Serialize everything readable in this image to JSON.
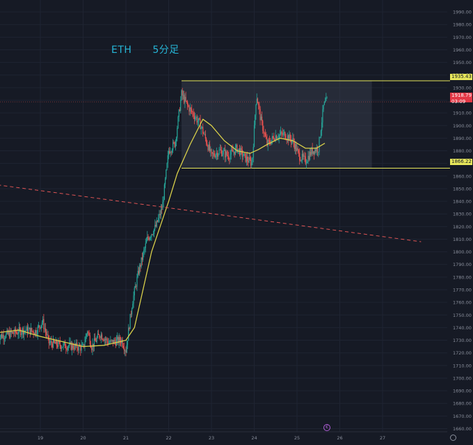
{
  "title": {
    "symbol": "ETH",
    "timeframe": "5分足"
  },
  "colors": {
    "background": "#161a25",
    "grid": "#1f2432",
    "up": "#26a69a",
    "down": "#ef5350",
    "ma": "#d9d04a",
    "range_line": "#e7e75b",
    "range_box": "#3a4150",
    "trendline": "#e05555",
    "axis_text": "#8a8f9c",
    "last_price_bg": "#e33846"
  },
  "chart_data": {
    "type": "candlestick",
    "y_axis": {
      "range": [
        1652,
        1995
      ],
      "ticks": [
        1660,
        1670,
        1680,
        1690,
        1700,
        1710,
        1720,
        1730,
        1740,
        1750,
        1760,
        1770,
        1780,
        1790,
        1800,
        1810,
        1820,
        1830,
        1840,
        1850,
        1860,
        1870,
        1880,
        1890,
        1900,
        1910,
        1920,
        1930,
        1940,
        1950,
        1960,
        1970,
        1980,
        1990
      ]
    },
    "x_axis": {
      "range": [
        0,
        9.9
      ],
      "ticks": [
        {
          "x": 1,
          "label": "19"
        },
        {
          "x": 2,
          "label": "20"
        },
        {
          "x": 3,
          "label": "21"
        },
        {
          "x": 4,
          "label": "22"
        },
        {
          "x": 5,
          "label": "23"
        },
        {
          "x": 6,
          "label": "24"
        },
        {
          "x": 7,
          "label": "25"
        },
        {
          "x": 8,
          "label": "26"
        },
        {
          "x": 9,
          "label": "27"
        }
      ]
    },
    "price_path": [
      [
        0.0,
        1733
      ],
      [
        0.3,
        1735
      ],
      [
        0.6,
        1738
      ],
      [
        0.9,
        1737
      ],
      [
        1.05,
        1745
      ],
      [
        1.2,
        1728
      ],
      [
        1.5,
        1726
      ],
      [
        1.8,
        1725
      ],
      [
        2.0,
        1724
      ],
      [
        2.1,
        1738
      ],
      [
        2.2,
        1725
      ],
      [
        2.4,
        1735
      ],
      [
        2.6,
        1728
      ],
      [
        2.9,
        1730
      ],
      [
        3.0,
        1722
      ],
      [
        3.15,
        1760
      ],
      [
        3.3,
        1785
      ],
      [
        3.5,
        1810
      ],
      [
        3.7,
        1820
      ],
      [
        3.85,
        1835
      ],
      [
        4.0,
        1880
      ],
      [
        4.15,
        1886
      ],
      [
        4.3,
        1925
      ],
      [
        4.45,
        1915
      ],
      [
        4.6,
        1908
      ],
      [
        4.75,
        1900
      ],
      [
        5.0,
        1876
      ],
      [
        5.2,
        1880
      ],
      [
        5.4,
        1876
      ],
      [
        5.6,
        1882
      ],
      [
        5.8,
        1874
      ],
      [
        5.95,
        1870
      ],
      [
        6.05,
        1925
      ],
      [
        6.15,
        1905
      ],
      [
        6.3,
        1885
      ],
      [
        6.5,
        1892
      ],
      [
        6.7,
        1893
      ],
      [
        6.9,
        1888
      ],
      [
        7.05,
        1876
      ],
      [
        7.2,
        1872
      ],
      [
        7.35,
        1880
      ],
      [
        7.5,
        1882
      ],
      [
        7.62,
        1915
      ],
      [
        7.7,
        1920
      ]
    ],
    "moving_average": [
      [
        0.0,
        1736
      ],
      [
        0.5,
        1738
      ],
      [
        1.0,
        1733
      ],
      [
        1.5,
        1729
      ],
      [
        2.0,
        1725
      ],
      [
        2.5,
        1726
      ],
      [
        3.0,
        1730
      ],
      [
        3.2,
        1740
      ],
      [
        3.4,
        1770
      ],
      [
        3.6,
        1800
      ],
      [
        3.8,
        1820
      ],
      [
        4.0,
        1840
      ],
      [
        4.2,
        1862
      ],
      [
        4.5,
        1885
      ],
      [
        4.8,
        1905
      ],
      [
        5.0,
        1900
      ],
      [
        5.3,
        1888
      ],
      [
        5.6,
        1880
      ],
      [
        5.9,
        1878
      ],
      [
        6.1,
        1881
      ],
      [
        6.3,
        1885
      ],
      [
        6.6,
        1890
      ],
      [
        6.9,
        1888
      ],
      [
        7.2,
        1882
      ],
      [
        7.45,
        1882
      ],
      [
        7.65,
        1886
      ]
    ],
    "range_box": {
      "x_start": 4.3,
      "x_end": 8.75,
      "top": 1935.43,
      "bottom": 1866.22
    },
    "trendline": {
      "start": [
        0.0,
        1853
      ],
      "end": [
        9.9,
        1808
      ]
    },
    "last_price": {
      "value": "1918.79",
      "countdown": "03:09"
    },
    "level_labels": [
      "1935.43",
      "1866.22"
    ]
  },
  "axis_icons": {
    "settings": "settings-icon",
    "event": "event-marker-icon"
  }
}
